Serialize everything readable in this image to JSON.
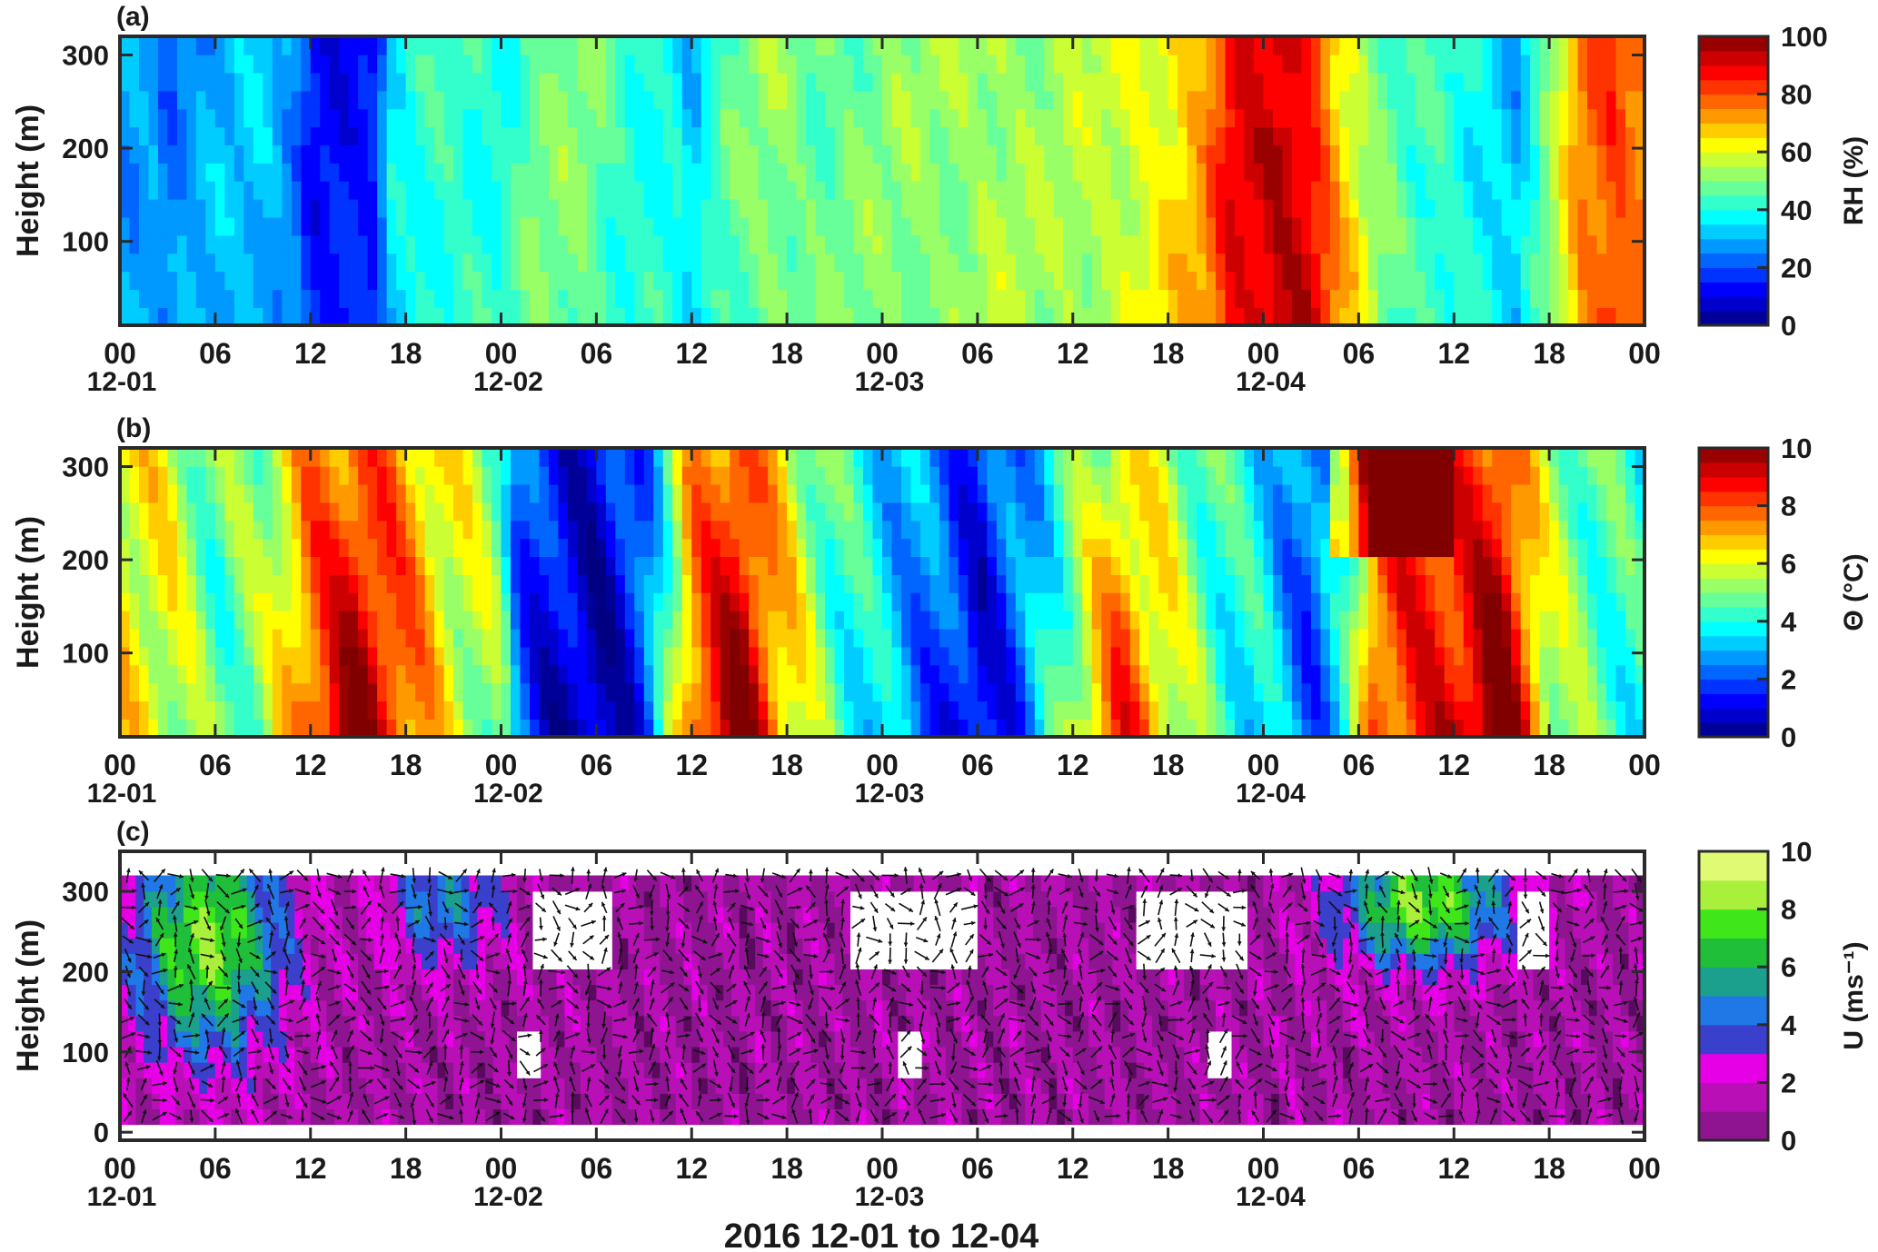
{
  "figure": {
    "xlabel": "2016 12-01 to 12-04"
  },
  "time_axis": {
    "range_hours": [
      0,
      96
    ],
    "ticks": [
      {
        "h": 0,
        "label": "00"
      },
      {
        "h": 6,
        "label": "06"
      },
      {
        "h": 12,
        "label": "12"
      },
      {
        "h": 18,
        "label": "18"
      },
      {
        "h": 24,
        "label": "00"
      },
      {
        "h": 30,
        "label": "06"
      },
      {
        "h": 36,
        "label": "12"
      },
      {
        "h": 42,
        "label": "18"
      },
      {
        "h": 48,
        "label": "00"
      },
      {
        "h": 54,
        "label": "06"
      },
      {
        "h": 60,
        "label": "12"
      },
      {
        "h": 66,
        "label": "18"
      },
      {
        "h": 72,
        "label": "00"
      },
      {
        "h": 78,
        "label": "06"
      },
      {
        "h": 84,
        "label": "12"
      },
      {
        "h": 90,
        "label": "18"
      },
      {
        "h": 96,
        "label": "00"
      }
    ],
    "dates": [
      {
        "h": 0,
        "label": "12-01"
      },
      {
        "h": 24,
        "label": "12-02"
      },
      {
        "h": 48,
        "label": "12-03"
      },
      {
        "h": 72,
        "label": "12-04"
      }
    ]
  },
  "chart_data": [
    {
      "type": "heatmap",
      "panel_label": "(a)",
      "ylabel": "Height  (m)",
      "ylim": [
        10,
        320
      ],
      "yticks": [
        100,
        200,
        300
      ],
      "colorbar": {
        "label": "RH (%)",
        "range": [
          0,
          100
        ],
        "ticks": [
          0,
          20,
          40,
          60,
          80,
          100
        ],
        "levels": 20,
        "colormap": "jet"
      },
      "z_profile": {
        "hours": [
          0,
          2,
          3,
          4,
          6,
          9,
          11,
          12,
          16,
          17,
          19,
          21,
          24,
          26,
          29,
          32,
          35,
          36,
          38,
          41,
          44,
          48,
          52,
          55,
          58,
          61,
          64,
          66,
          68,
          70,
          72,
          73,
          75,
          77,
          79,
          81,
          83,
          86,
          88,
          90,
          92,
          94,
          96
        ],
        "values": [
          28,
          30,
          24,
          27,
          30,
          32,
          26,
          14,
          14,
          34,
          40,
          44,
          40,
          48,
          50,
          42,
          40,
          32,
          45,
          52,
          48,
          50,
          52,
          55,
          52,
          55,
          60,
          64,
          70,
          88,
          93,
          96,
          90,
          66,
          48,
          40,
          42,
          38,
          30,
          50,
          74,
          82,
          76
        ]
      }
    },
    {
      "type": "heatmap",
      "panel_label": "(b)",
      "ylabel": "Height  (m)",
      "ylim": [
        10,
        320
      ],
      "yticks": [
        100,
        200,
        300
      ],
      "colorbar": {
        "label": "Θ (°C)",
        "range": [
          0,
          10
        ],
        "ticks": [
          0,
          2,
          4,
          6,
          8,
          10
        ],
        "levels": 20,
        "colormap": "jet"
      },
      "z_profile": {
        "hours": [
          0,
          3,
          6,
          9,
          12,
          15,
          18,
          21,
          24,
          25,
          27,
          30,
          33,
          36,
          39,
          42,
          45,
          48,
          51,
          54,
          57,
          60,
          63,
          66,
          69,
          72,
          75,
          77,
          79,
          81,
          84,
          87,
          90,
          93,
          96
        ],
        "values": [
          6.4,
          6.0,
          4.6,
          5.2,
          7.8,
          9.0,
          7.6,
          6.0,
          5.0,
          2.4,
          1.4,
          1.0,
          2.2,
          7.5,
          9.2,
          6.5,
          4.5,
          3.5,
          2.6,
          1.6,
          2.8,
          5.2,
          7.4,
          6.0,
          4.4,
          3.6,
          2.0,
          3.6,
          7.8,
          8.4,
          8.6,
          9.4,
          5.6,
          4.6,
          4.0
        ]
      }
    },
    {
      "type": "heatmap",
      "panel_label": "(c)",
      "ylabel": "Height  (m)",
      "ylim": [
        -10,
        350
      ],
      "yticks": [
        0,
        100,
        200,
        300
      ],
      "colorbar": {
        "label": "U  (ms⁻¹)",
        "range": [
          0,
          10
        ],
        "ticks": [
          0,
          2,
          4,
          6,
          8,
          10
        ],
        "levels": 10,
        "colors": [
          "#5a0a5e",
          "#8f1492",
          "#b80fb6",
          "#e600e6",
          "#3a3fcc",
          "#1f78e6",
          "#1aa08c",
          "#1fbf3a",
          "#3ee61a",
          "#a8f03c",
          "#e0fa73"
        ]
      },
      "data_height_range": [
        10,
        320
      ],
      "wind_arrows": "black vectors overlaid at ~1 h x 20 m spacing",
      "high_wind_events": [
        {
          "hours": [
            1,
            10
          ],
          "heights": [
            100,
            320
          ],
          "peak_U": 9
        },
        {
          "hours": [
            17,
            24
          ],
          "heights": [
            200,
            320
          ],
          "peak_U": 6
        },
        {
          "hours": [
            77,
            87
          ],
          "heights": [
            200,
            320
          ],
          "peak_U": 9
        }
      ]
    }
  ]
}
